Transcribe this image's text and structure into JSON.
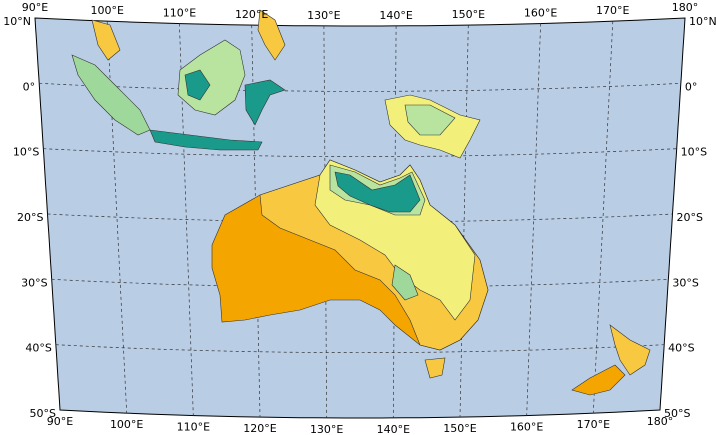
{
  "map": {
    "longitude_labels": [
      "90°E",
      "100°E",
      "110°E",
      "120°E",
      "130°E",
      "140°E",
      "150°E",
      "160°E",
      "170°E",
      "180°"
    ],
    "latitude_labels": [
      "10°N",
      "0°",
      "10°S",
      "20°S",
      "30°S",
      "40°S",
      "50°S"
    ]
  }
}
